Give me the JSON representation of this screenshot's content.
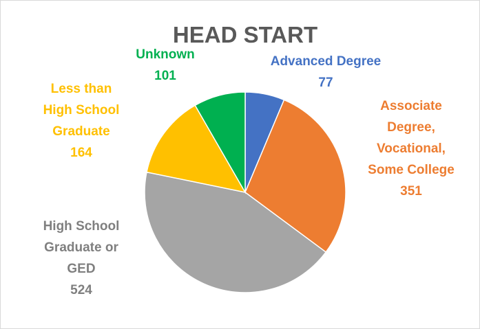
{
  "chart_data": {
    "type": "pie",
    "title": "HEAD START",
    "categories": [
      "Advanced Degree",
      "Associate Degree, Vocational, Some College",
      "High School Graduate or GED",
      "Less than High School Graduate",
      "Unknown"
    ],
    "values": [
      77,
      351,
      524,
      164,
      101
    ],
    "colors": [
      "#4472c4",
      "#ed7d31",
      "#a5a5a5",
      "#ffc000",
      "#00b050"
    ]
  }
}
